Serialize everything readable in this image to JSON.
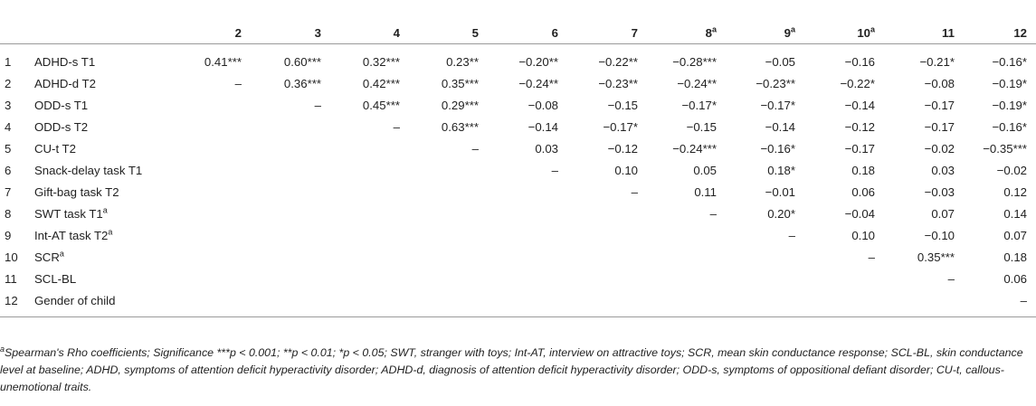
{
  "columns": [
    "2",
    "3",
    "4",
    "5",
    "6",
    "7",
    "8",
    "9",
    "10",
    "11",
    "12"
  ],
  "column_sup": {
    "8": "a",
    "9": "a",
    "10": "a"
  },
  "rows": [
    {
      "num": "1",
      "label": "ADHD-s T1",
      "sup": "",
      "cells": [
        "0.41***",
        "0.60***",
        "0.32***",
        "0.23**",
        "−0.20**",
        "−0.22**",
        "−0.28***",
        "−0.05",
        "−0.16",
        "−0.21*",
        "−0.16*"
      ]
    },
    {
      "num": "2",
      "label": "ADHD-d T2",
      "sup": "",
      "cells": [
        "–",
        "0.36***",
        "0.42***",
        "0.35***",
        "−0.24**",
        "−0.23**",
        "−0.24**",
        "−0.23**",
        "−0.22*",
        "−0.08",
        "−0.19*"
      ]
    },
    {
      "num": "3",
      "label": "ODD-s T1",
      "sup": "",
      "cells": [
        "",
        "–",
        "0.45***",
        "0.29***",
        "−0.08",
        "−0.15",
        "−0.17*",
        "−0.17*",
        "−0.14",
        "−0.17",
        "−0.19*"
      ]
    },
    {
      "num": "4",
      "label": "ODD-s T2",
      "sup": "",
      "cells": [
        "",
        "",
        "–",
        "0.63***",
        "−0.14",
        "−0.17*",
        "−0.15",
        "−0.14",
        "−0.12",
        "−0.17",
        "−0.16*"
      ]
    },
    {
      "num": "5",
      "label": "CU-t T2",
      "sup": "",
      "cells": [
        "",
        "",
        "",
        "–",
        "0.03",
        "−0.12",
        "−0.24***",
        "−0.16*",
        "−0.17",
        "−0.02",
        "−0.35***"
      ]
    },
    {
      "num": "6",
      "label": "Snack-delay task T1",
      "sup": "",
      "cells": [
        "",
        "",
        "",
        "",
        "–",
        "0.10",
        "0.05",
        "0.18*",
        "0.18",
        "0.03",
        "−0.02"
      ]
    },
    {
      "num": "7",
      "label": "Gift-bag task T2",
      "sup": "",
      "cells": [
        "",
        "",
        "",
        "",
        "",
        "–",
        "0.11",
        "−0.01",
        "0.06",
        "−0.03",
        "0.12"
      ]
    },
    {
      "num": "8",
      "label": "SWT task T1",
      "sup": "a",
      "cells": [
        "",
        "",
        "",
        "",
        "",
        "",
        "–",
        "0.20*",
        "−0.04",
        "0.07",
        "0.14"
      ]
    },
    {
      "num": "9",
      "label": "Int-AT task T2",
      "sup": "a",
      "cells": [
        "",
        "",
        "",
        "",
        "",
        "",
        "",
        "–",
        "0.10",
        "−0.10",
        "0.07"
      ]
    },
    {
      "num": "10",
      "label": "SCR",
      "sup": "a",
      "cells": [
        "",
        "",
        "",
        "",
        "",
        "",
        "",
        "",
        "–",
        "0.35***",
        "0.18"
      ]
    },
    {
      "num": "11",
      "label": "SCL-BL",
      "sup": "",
      "cells": [
        "",
        "",
        "",
        "",
        "",
        "",
        "",
        "",
        "",
        "–",
        "0.06"
      ]
    },
    {
      "num": "12",
      "label": "Gender of child",
      "sup": "",
      "cells": [
        "",
        "",
        "",
        "",
        "",
        "",
        "",
        "",
        "",
        "",
        "–"
      ]
    }
  ],
  "footnote": {
    "sup": "a",
    "text": "Spearman's Rho coefficients; Significance ***p < 0.001; **p < 0.01; *p < 0.05; SWT, stranger with toys; Int-AT, interview on attractive toys; SCR, mean skin conductance response; SCL-BL, skin conductance level at baseline; ADHD, symptoms of attention deficit hyperactivity disorder; ADHD-d, diagnosis of attention deficit hyperactivity disorder; ODD-s, symptoms of oppositional defiant disorder; CU-t, callous-unemotional traits."
  }
}
